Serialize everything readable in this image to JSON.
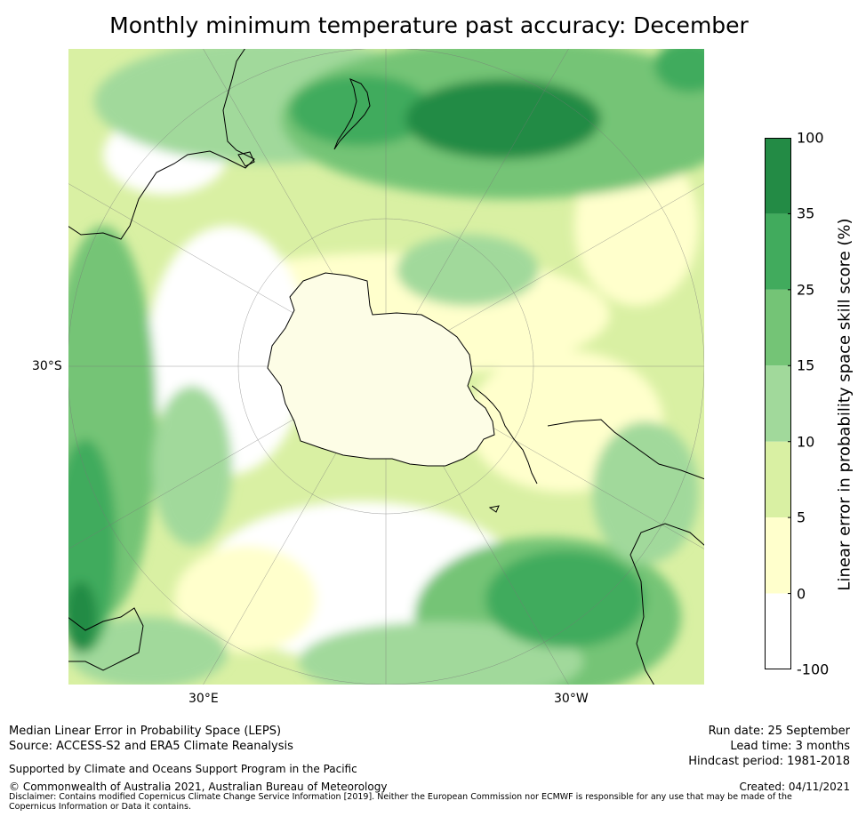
{
  "title": "Monthly minimum temperature past accuracy: December",
  "map": {
    "projection": "south-polar-stereographic",
    "lat_label": "30°S",
    "lon_labels": {
      "east": "30°E",
      "west": "30°W"
    }
  },
  "colorbar": {
    "label": "Linear error in probability space skill score (%)",
    "ticks": [
      "100",
      "35",
      "25",
      "15",
      "10",
      "5",
      "0",
      "-100"
    ],
    "bins": [
      {
        "range": "35 to 100",
        "color": "#238b45"
      },
      {
        "range": "25 to 35",
        "color": "#41ab5d"
      },
      {
        "range": "15 to 25",
        "color": "#74c476"
      },
      {
        "range": "10 to 15",
        "color": "#a1d99b"
      },
      {
        "range": "5 to 10",
        "color": "#d9f0a3"
      },
      {
        "range": "0 to 5",
        "color": "#ffffcc"
      },
      {
        "range": "-100 to 0",
        "color": "#ffffff"
      }
    ]
  },
  "footer": {
    "left_line1": "Median Linear Error in Probability Space (LEPS)",
    "left_line2": "Source: ACCESS-S2 and ERA5 Climate Reanalysis",
    "support": "Supported by Climate and Oceans Support Program in the Pacific",
    "copyright": "© Commonwealth of Australia 2021, Australian Bureau of Meteorology",
    "disclaimer": "Disclaimer: Contains modified Copernicus Climate Change Service Information [2019]. Neither the European Commission nor ECMWF is responsible for any use that may be made of the Copernicus Information or Data it contains.",
    "run_date": "Run date: 25 September",
    "lead_time": "Lead time: 3 months",
    "hindcast": "Hindcast period: 1981-2018",
    "created": "Created: 04/11/2021"
  }
}
